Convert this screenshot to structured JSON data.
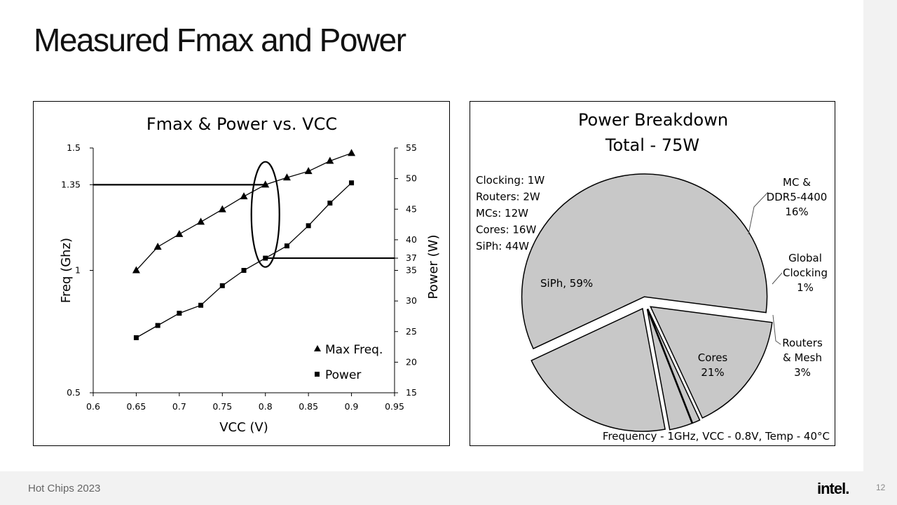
{
  "slide": {
    "title": "Measured Fmax and Power",
    "footer": "Hot Chips 2023",
    "logo": "intel.",
    "page_number": "12"
  },
  "chart_data": [
    {
      "type": "scatter",
      "title": "Fmax & Power vs. VCC",
      "xlabel": "VCC (V)",
      "ylabel": "Freq (Ghz)",
      "y2label": "Power (W)",
      "x_ticks": [
        "0.6",
        "0.65",
        "0.7",
        "0.75",
        "0.8",
        "0.85",
        "0.9",
        "0.95"
      ],
      "xlim": [
        0.6,
        0.95
      ],
      "ylim": [
        0.5,
        1.5
      ],
      "y_ticks": [
        "0.5",
        "1",
        "1.35",
        "1.5"
      ],
      "y2lim": [
        15,
        55
      ],
      "y2_ticks": [
        "15",
        "20",
        "25",
        "30",
        "35",
        "37",
        "40",
        "45",
        "50",
        "55"
      ],
      "legend_position": "bottom-right",
      "series": [
        {
          "name": "Max Freq.",
          "axis": "left",
          "marker": "triangle",
          "x": [
            0.65,
            0.675,
            0.7,
            0.725,
            0.75,
            0.775,
            0.8,
            0.825,
            0.85,
            0.875,
            0.9
          ],
          "y": [
            1.0,
            1.096,
            1.148,
            1.198,
            1.249,
            1.302,
            1.35,
            1.379,
            1.405,
            1.447,
            1.479
          ]
        },
        {
          "name": "Power",
          "axis": "right",
          "marker": "square",
          "x": [
            0.65,
            0.675,
            0.7,
            0.725,
            0.75,
            0.775,
            0.8,
            0.825,
            0.85,
            0.875,
            0.9
          ],
          "y": [
            24,
            26,
            28,
            29.3,
            32.5,
            35,
            37,
            39,
            42.3,
            46,
            49.3
          ]
        }
      ],
      "annotations": {
        "freq_reference": 1.35,
        "power_reference": 37,
        "highlight_vcc": 0.8
      }
    },
    {
      "type": "pie",
      "title": "Power Breakdown",
      "subtitle": "Total - 75W",
      "note_lines": [
        "Clocking: 1W",
        "Routers: 2W",
        "MCs: 12W",
        "Cores: 16W",
        "SiPh: 44W"
      ],
      "footnote": "Frequency - 1GHz, VCC - 0.8V, Temp - 40°C",
      "slices": [
        {
          "lines": [
            "SiPh, 59%"
          ],
          "value": 59
        },
        {
          "lines": [
            "MC &",
            "DDR5-4400",
            "16%"
          ],
          "value": 16
        },
        {
          "lines": [
            "Global",
            "Clocking",
            "1%"
          ],
          "value": 1
        },
        {
          "lines": [
            "Routers",
            "& Mesh",
            "3%"
          ],
          "value": 3
        },
        {
          "lines": [
            "Cores",
            "21%"
          ],
          "value": 21
        }
      ],
      "slice_color": "#c8c8c8"
    }
  ]
}
